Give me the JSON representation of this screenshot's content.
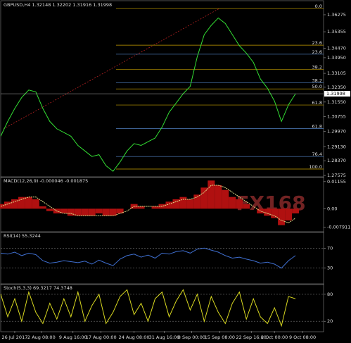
{
  "chart_data": [
    {
      "type": "line",
      "title": "GBPUSD,H4  1.32148 1.32202 1.31916 1.31998",
      "color": "#33dd33",
      "x": [
        0,
        10,
        20,
        30,
        40,
        50,
        60,
        70,
        80,
        90,
        100,
        110,
        120,
        130,
        140,
        150,
        160,
        170,
        180,
        190,
        200,
        210,
        220,
        230,
        240,
        250,
        260,
        270,
        280,
        290,
        300,
        310,
        320,
        330,
        340,
        350,
        360,
        370,
        380,
        390,
        400,
        410,
        420
      ],
      "values": [
        1.297,
        1.305,
        1.312,
        1.318,
        1.322,
        1.321,
        1.312,
        1.305,
        1.301,
        1.299,
        1.297,
        1.292,
        1.289,
        1.286,
        1.287,
        1.281,
        1.278,
        1.283,
        1.289,
        1.293,
        1.292,
        1.294,
        1.296,
        1.302,
        1.31,
        1.315,
        1.32,
        1.324,
        1.34,
        1.352,
        1.357,
        1.361,
        1.358,
        1.352,
        1.346,
        1.342,
        1.337,
        1.328,
        1.323,
        1.316,
        1.305,
        1.314,
        1.32
      ],
      "xlim": [
        0,
        460
      ],
      "xticks": [
        {
          "value": 20,
          "label": "26 Jul 2017"
        },
        {
          "value": 58,
          "label": "2 Aug 08:00"
        },
        {
          "value": 103,
          "label": "9 Aug 16:00"
        },
        {
          "value": 143,
          "label": "17 Aug 00:00"
        },
        {
          "value": 190,
          "label": "24 Aug 08:00"
        },
        {
          "value": 233,
          "label": "31 Aug 16:00"
        },
        {
          "value": 272,
          "label": "8 Sep 00:00"
        },
        {
          "value": 312,
          "label": "15 Sep 08:00"
        },
        {
          "value": 357,
          "label": "22 Sep 16:00"
        },
        {
          "value": 390,
          "label": "2 Oct 00:00"
        },
        {
          "value": 430,
          "label": "9 Oct 08:00"
        }
      ],
      "ylim": [
        1.2754,
        1.3696
      ],
      "yticks": [
        1.36275,
        1.35355,
        {
          "value": 1.3447,
          "label": "1.34470"
        },
        {
          "value": 1.3395,
          "label": "1.33950"
        },
        1.33105,
        {
          "value": 1.3235,
          "label": "1.32350"
        },
        {
          "value": 1.3155,
          "label": "1.31550"
        },
        1.30755,
        {
          "value": 1.2997,
          "label": "1.29970"
        },
        {
          "value": 1.2913,
          "label": "1.29130"
        },
        {
          "value": 1.2837,
          "label": "1.28370"
        },
        1.27575
      ],
      "current": 1.31998,
      "fib_levels": [
        {
          "label": "0.0",
          "value": 1.3661,
          "color": "#c8a000"
        },
        {
          "label": "23.6",
          "value": 1.3463,
          "color": "#c8a000"
        },
        {
          "label": "23.6",
          "value": 1.3414,
          "color": "#5080c0"
        },
        {
          "label": "38.2",
          "value": 1.3331,
          "color": "#c8a000"
        },
        {
          "label": "38.2",
          "value": 1.326,
          "color": "#5080c0"
        },
        {
          "label": "50.0",
          "value": 1.3226,
          "color": "#c8a000"
        },
        {
          "label": "61.8",
          "value": 1.3139,
          "color": "#c8a000"
        },
        {
          "label": "61.8",
          "value": 1.3011,
          "color": "#5080c0"
        },
        {
          "label": "76.4",
          "value": 1.286,
          "color": "#5080c0"
        },
        {
          "label": "100.0",
          "value": 1.2792,
          "color": "#c8a000"
        }
      ],
      "watermark": "FX168"
    },
    {
      "type": "bar",
      "title": "MACD(12,26,9) -0.000046 -0.001875",
      "color": "#b01010",
      "signal_color": "#dddd88",
      "x": [
        0,
        10,
        20,
        30,
        40,
        50,
        60,
        70,
        80,
        90,
        100,
        110,
        120,
        130,
        140,
        150,
        160,
        170,
        180,
        190,
        200,
        210,
        220,
        230,
        240,
        250,
        260,
        270,
        280,
        290,
        300,
        310,
        320,
        330,
        340,
        350,
        360,
        370,
        380,
        390,
        400,
        410,
        420
      ],
      "values": [
        0.002,
        0.003,
        0.004,
        0.005,
        0.005,
        0.004,
        0.001,
        -0.001,
        -0.002,
        -0.002,
        -0.003,
        -0.003,
        -0.003,
        -0.003,
        -0.002,
        -0.003,
        -0.003,
        -0.002,
        0.0,
        0.002,
        0.001,
        0.0,
        0.001,
        0.002,
        0.003,
        0.004,
        0.005,
        0.004,
        0.006,
        0.009,
        0.012,
        0.01,
        0.008,
        0.005,
        0.004,
        0.002,
        0.0,
        -0.002,
        -0.003,
        -0.004,
        -0.007,
        -0.005,
        -0.002
      ],
      "signal": [
        0.001,
        0.002,
        0.003,
        0.004,
        0.005,
        0.005,
        0.003,
        0.001,
        -0.001,
        -0.002,
        -0.002,
        -0.003,
        -0.003,
        -0.003,
        -0.003,
        -0.003,
        -0.003,
        -0.002,
        -0.001,
        0.001,
        0.001,
        0.001,
        0.001,
        0.001,
        0.002,
        0.003,
        0.004,
        0.004,
        0.005,
        0.007,
        0.01,
        0.01,
        0.009,
        0.007,
        0.005,
        0.003,
        0.001,
        -0.001,
        -0.002,
        -0.003,
        -0.005,
        -0.006,
        -0.004
      ],
      "xlim": [
        0,
        460
      ],
      "ylim": [
        -0.0095,
        0.013
      ],
      "yticks": [
        0.01155,
        {
          "value": 0,
          "label": "0.00"
        },
        -0.007911
      ]
    },
    {
      "type": "line",
      "title": "RSI(14) 55.3244",
      "color": "#3f6fd0",
      "x": [
        0,
        10,
        20,
        30,
        40,
        50,
        60,
        70,
        80,
        90,
        100,
        110,
        120,
        130,
        140,
        150,
        160,
        170,
        180,
        190,
        200,
        210,
        220,
        230,
        240,
        250,
        260,
        270,
        280,
        290,
        300,
        310,
        320,
        330,
        340,
        350,
        360,
        370,
        380,
        390,
        400,
        410,
        420
      ],
      "values": [
        60,
        58,
        62,
        55,
        60,
        57,
        45,
        40,
        42,
        45,
        43,
        41,
        44,
        38,
        46,
        40,
        35,
        48,
        55,
        58,
        52,
        56,
        50,
        60,
        58,
        63,
        65,
        60,
        68,
        70,
        66,
        62,
        55,
        50,
        52,
        48,
        45,
        40,
        42,
        38,
        30,
        45,
        55
      ],
      "xlim": [
        0,
        460
      ],
      "ylim": [
        0,
        100
      ],
      "yticks": [
        70,
        30
      ]
    },
    {
      "type": "line",
      "title": "Stoch(5,3,3) 69.3217 74.3748",
      "color": "#d8d820",
      "x": [
        0,
        10,
        20,
        30,
        40,
        50,
        60,
        70,
        80,
        90,
        100,
        110,
        120,
        130,
        140,
        150,
        160,
        170,
        180,
        190,
        200,
        210,
        220,
        230,
        240,
        250,
        260,
        270,
        280,
        290,
        300,
        310,
        320,
        330,
        340,
        350,
        360,
        370,
        380,
        390,
        400,
        410,
        420
      ],
      "values": [
        80,
        30,
        70,
        20,
        85,
        40,
        15,
        60,
        25,
        70,
        30,
        85,
        20,
        55,
        80,
        15,
        40,
        75,
        90,
        35,
        60,
        20,
        70,
        85,
        30,
        65,
        90,
        45,
        80,
        20,
        75,
        40,
        15,
        60,
        85,
        25,
        70,
        30,
        15,
        50,
        10,
        75,
        70
      ],
      "xlim": [
        0,
        460
      ],
      "ylim": [
        0,
        100
      ],
      "yticks": [
        80,
        20
      ]
    }
  ]
}
